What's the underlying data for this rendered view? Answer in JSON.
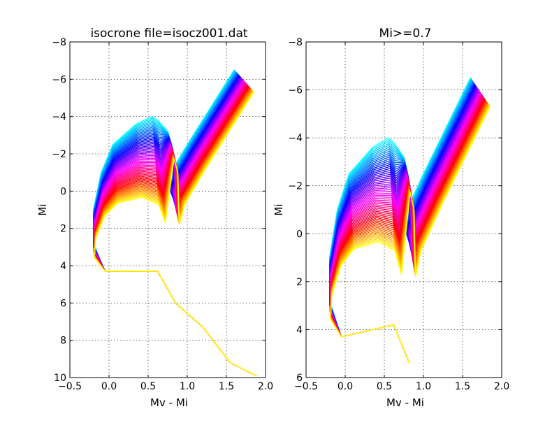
{
  "chart_data": [
    {
      "type": "line",
      "title": "isocrone file=isocz001.dat",
      "xlabel": "Mv - Mi",
      "ylabel": "Mi",
      "xlim": [
        -0.5,
        2.0
      ],
      "ylim": [
        10,
        -8
      ],
      "y_inverted": true,
      "x_ticks": [
        "−0.5",
        "0.0",
        "0.5",
        "1.0",
        "1.5",
        "2.0"
      ],
      "y_ticks": [
        "−8",
        "−6",
        "−4",
        "−2",
        "0",
        "2",
        "4",
        "6",
        "8",
        "10"
      ],
      "grid": true,
      "isochrone_count": 60,
      "color_sequence": [
        "#00ffff",
        "#0000ff",
        "#ff00ff",
        "#ff0000",
        "#ffff00"
      ],
      "lower_main_sequence": [
        [
          0.62,
          4.3
        ],
        [
          0.85,
          6.0
        ],
        [
          1.2,
          7.3
        ],
        [
          1.55,
          9.2
        ],
        [
          1.88,
          9.9
        ]
      ],
      "template_isochrone_x": [
        -0.05,
        -0.2,
        -0.2,
        -0.1,
        0.05,
        0.35,
        0.55,
        0.62,
        0.75,
        0.8,
        0.82,
        0.72,
        1.0,
        1.3,
        1.6
      ],
      "template_isochrone_y": [
        4.3,
        2.8,
        1.0,
        -1.0,
        -2.5,
        -3.6,
        -4.0,
        -3.8,
        -3.2,
        -2.5,
        0.3,
        -0.5,
        -2.5,
        -4.5,
        -6.5
      ]
    },
    {
      "type": "line",
      "title": "Mi>=0.7",
      "xlabel": "Mv - Mi",
      "ylabel": "Mi",
      "xlim": [
        -0.5,
        2.0
      ],
      "ylim": [
        6,
        -8
      ],
      "y_inverted": true,
      "x_ticks": [
        "−0.5",
        "0.0",
        "0.5",
        "1.0",
        "1.5",
        "2.0"
      ],
      "y_ticks": [
        "−8",
        "−6",
        "−4",
        "−2",
        "0",
        "2",
        "4",
        "6"
      ],
      "grid": true,
      "isochrone_count": 60,
      "color_sequence": [
        "#00ffff",
        "#0000ff",
        "#ff00ff",
        "#ff0000",
        "#ffff00"
      ],
      "lower_main_sequence": [
        [
          0.62,
          3.8
        ],
        [
          0.72,
          4.6
        ],
        [
          0.82,
          5.4
        ]
      ],
      "template_isochrone_x": [
        -0.05,
        -0.2,
        -0.2,
        -0.1,
        0.05,
        0.35,
        0.55,
        0.62,
        0.75,
        0.8,
        0.82,
        0.72,
        1.0,
        1.3,
        1.6
      ],
      "template_isochrone_y": [
        4.3,
        2.8,
        1.0,
        -1.0,
        -2.5,
        -3.6,
        -4.0,
        -3.8,
        -3.2,
        -2.5,
        0.3,
        -0.5,
        -2.5,
        -4.5,
        -6.5
      ]
    }
  ]
}
